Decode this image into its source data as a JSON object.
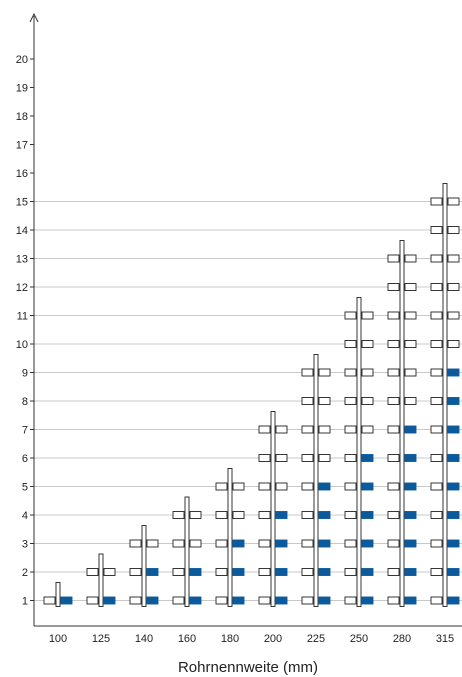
{
  "chart_data": {
    "type": "bar",
    "title": "",
    "xlabel": "Rohrnennweite (mm)",
    "ylabel": "",
    "ylim": [
      0,
      21
    ],
    "y_ticks": [
      1,
      2,
      3,
      4,
      5,
      6,
      7,
      8,
      9,
      10,
      11,
      12,
      13,
      14,
      15,
      16,
      17,
      18,
      19,
      20
    ],
    "grid": true,
    "grid_max_level": 15,
    "categories": [
      "100",
      "125",
      "140",
      "160",
      "180",
      "200",
      "225",
      "250",
      "280",
      "315"
    ],
    "series": [
      {
        "values": [
          1,
          2,
          3,
          4,
          5,
          7,
          9,
          11,
          13,
          15
        ]
      },
      {
        "values": [
          1,
          1,
          2,
          2,
          3,
          4,
          5,
          6,
          7,
          9
        ]
      }
    ],
    "colors": {
      "filled_right": "#0a5a9c",
      "outline": "#222222",
      "grid": "#c8c8c8",
      "axis": "#333333"
    }
  }
}
